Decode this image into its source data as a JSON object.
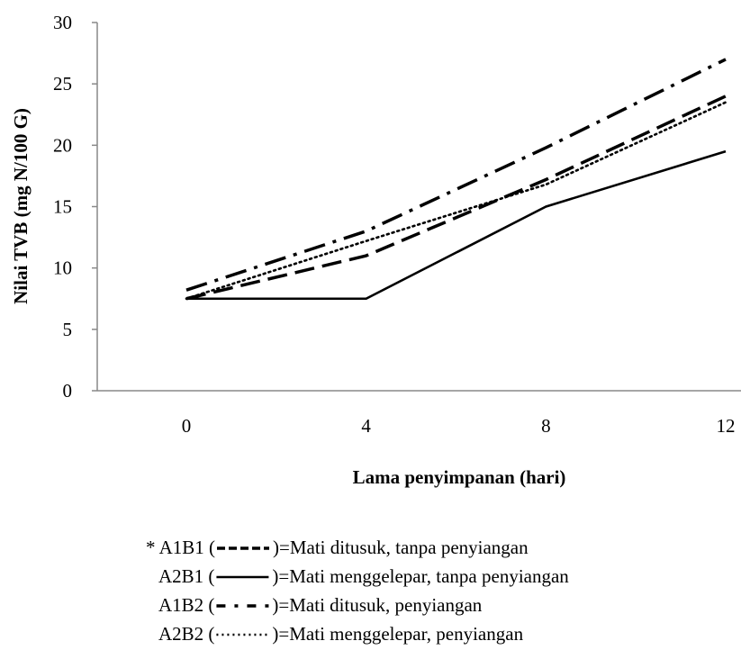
{
  "chart_data": {
    "type": "line",
    "title": "",
    "xlabel": "Lama penyimpanan (hari)",
    "ylabel": "Nilai TVB (mg N/100 G)",
    "x": [
      0,
      4,
      8,
      12
    ],
    "xticks": [
      "0",
      "4",
      "8",
      "12"
    ],
    "ylim": [
      0,
      30
    ],
    "yticks": [
      "0",
      "5",
      "10",
      "15",
      "20",
      "25",
      "30"
    ],
    "grid": false,
    "series": [
      {
        "name": "A1B1",
        "style": "dashed",
        "values": [
          7.5,
          11.0,
          17.2,
          24.0
        ]
      },
      {
        "name": "A2B1",
        "style": "solid",
        "values": [
          7.5,
          7.5,
          15.0,
          19.5
        ]
      },
      {
        "name": "A1B2",
        "style": "dashdot",
        "values": [
          8.2,
          13.0,
          19.8,
          27.0
        ]
      },
      {
        "name": "A2B2",
        "style": "dotted",
        "values": [
          7.5,
          12.2,
          16.8,
          23.5
        ]
      }
    ],
    "legend": {
      "placement": "bottom",
      "entries": [
        {
          "prefix": "* A1B1 (",
          "style": "dashed",
          "suffix": ")=Mati ditusuk, tanpa penyiangan"
        },
        {
          "prefix": "A2B1 (",
          "style": "solid",
          "suffix": ")=Mati menggelepar, tanpa penyiangan"
        },
        {
          "prefix": "A1B2 (",
          "style": "dashdot",
          "suffix": ")=Mati ditusuk, penyiangan"
        },
        {
          "prefix": "A2B2 (",
          "style": "dotted",
          "suffix": ")=Mati menggelepar, penyiangan"
        }
      ]
    }
  }
}
